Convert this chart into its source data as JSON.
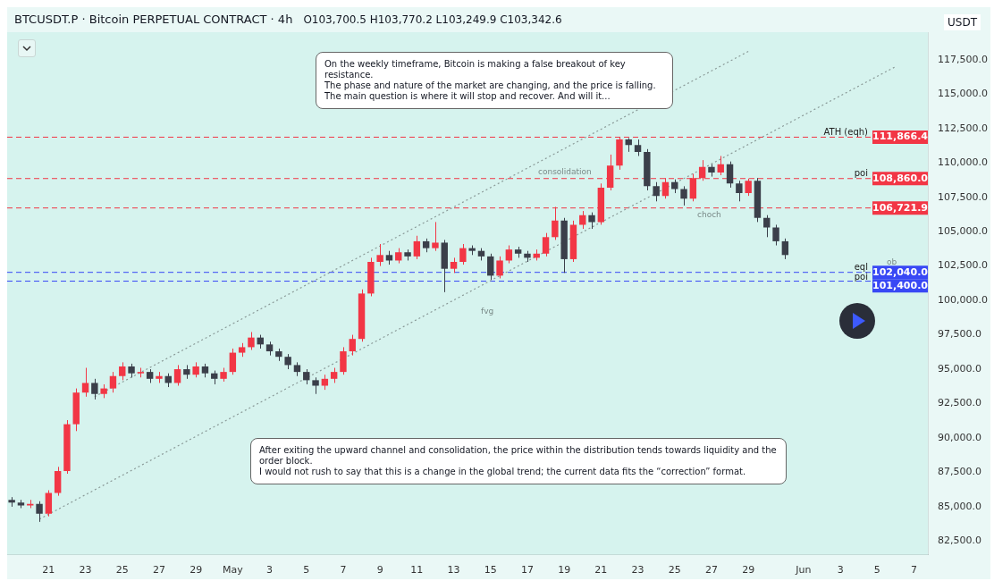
{
  "chart_data": {
    "type": "candlestick",
    "title": "BTCUSDT.P · Bitcoin PERPETUAL CONTRACT · 4h",
    "subtitle": "O103,700.5 H103,770.2 L103,249.9 C103,342.6",
    "ylabel": "USDT",
    "categories": [
      null,
      null,
      null,
      null,
      "21",
      null,
      null,
      null,
      "23",
      null,
      null,
      null,
      "25",
      null,
      null,
      null,
      "27",
      null,
      null,
      null,
      "29",
      null,
      null,
      null,
      "May",
      null,
      null,
      null,
      "3",
      null,
      null,
      null,
      "5",
      null,
      null,
      null,
      "7",
      null,
      null,
      null,
      "9",
      null,
      null,
      null,
      "11",
      null,
      null,
      null,
      "13",
      null,
      null,
      null,
      "15",
      null,
      null,
      null,
      "17",
      null,
      null,
      null,
      "19",
      null,
      null,
      null,
      "21",
      null,
      null,
      null,
      "23",
      null,
      null,
      null,
      "25",
      null,
      null,
      null,
      "27",
      null,
      null,
      null,
      "29",
      null,
      null,
      null,
      null,
      null,
      "Jun",
      null,
      null,
      null,
      "3",
      null,
      null,
      null,
      "5",
      null,
      null,
      null,
      "7",
      null
    ],
    "ohlc": [
      [
        85500,
        85700,
        85000,
        85300
      ],
      [
        85300,
        85500,
        84900,
        85100
      ],
      [
        85100,
        85500,
        84900,
        85200
      ],
      [
        85200,
        85400,
        83900,
        84500
      ],
      [
        84500,
        86200,
        84300,
        86000
      ],
      [
        86000,
        87900,
        85800,
        87600
      ],
      [
        87600,
        91300,
        87400,
        91000
      ],
      [
        91000,
        93600,
        90500,
        93300
      ],
      [
        93300,
        95100,
        93000,
        94000
      ],
      [
        94000,
        94300,
        92800,
        93200
      ],
      [
        93200,
        93900,
        92900,
        93600
      ],
      [
        93600,
        94800,
        93300,
        94500
      ],
      [
        94500,
        95500,
        94200,
        95200
      ],
      [
        95200,
        95400,
        94400,
        94700
      ],
      [
        94700,
        95100,
        94400,
        94800
      ],
      [
        94800,
        95000,
        94000,
        94300
      ],
      [
        94300,
        94800,
        94000,
        94500
      ],
      [
        94500,
        94700,
        93700,
        94000
      ],
      [
        94000,
        95300,
        93800,
        95000
      ],
      [
        95000,
        95300,
        94300,
        94600
      ],
      [
        94600,
        95500,
        94400,
        95200
      ],
      [
        95200,
        95400,
        94400,
        94700
      ],
      [
        94700,
        94900,
        93900,
        94300
      ],
      [
        94300,
        95100,
        94100,
        94800
      ],
      [
        94800,
        96500,
        94600,
        96200
      ],
      [
        96200,
        96900,
        95900,
        96600
      ],
      [
        96600,
        97700,
        96400,
        97300
      ],
      [
        97300,
        97500,
        96500,
        96800
      ],
      [
        96800,
        97000,
        96000,
        96300
      ],
      [
        96300,
        96500,
        95600,
        95900
      ],
      [
        95900,
        96100,
        95000,
        95300
      ],
      [
        95300,
        95500,
        94500,
        94800
      ],
      [
        94800,
        95000,
        93900,
        94200
      ],
      [
        94200,
        94400,
        93200,
        93800
      ],
      [
        93800,
        94600,
        93500,
        94300
      ],
      [
        94300,
        95100,
        94000,
        94800
      ],
      [
        94800,
        96600,
        94600,
        96300
      ],
      [
        96300,
        97500,
        96000,
        97200
      ],
      [
        97200,
        100800,
        97000,
        100500
      ],
      [
        100500,
        103100,
        100300,
        102800
      ],
      [
        102800,
        104100,
        102500,
        103300
      ],
      [
        103300,
        103600,
        102600,
        102900
      ],
      [
        102900,
        103800,
        102700,
        103500
      ],
      [
        103500,
        103700,
        102900,
        103200
      ],
      [
        103200,
        104700,
        103000,
        104300
      ],
      [
        104300,
        104500,
        103500,
        103800
      ],
      [
        103800,
        105700,
        103600,
        104200
      ],
      [
        104200,
        104400,
        100600,
        102300
      ],
      [
        102300,
        103100,
        102000,
        102800
      ],
      [
        102800,
        104100,
        102600,
        103800
      ],
      [
        103800,
        104000,
        103300,
        103600
      ],
      [
        103600,
        103800,
        102900,
        103200
      ],
      [
        103200,
        103400,
        101500,
        101800
      ],
      [
        101800,
        103200,
        101600,
        102900
      ],
      [
        102900,
        104000,
        102700,
        103700
      ],
      [
        103700,
        103900,
        103100,
        103400
      ],
      [
        103400,
        103600,
        102800,
        103100
      ],
      [
        103100,
        103700,
        102900,
        103400
      ],
      [
        103400,
        104900,
        103200,
        104600
      ],
      [
        104600,
        106800,
        104400,
        105800
      ],
      [
        105800,
        106000,
        102000,
        103000
      ],
      [
        103000,
        105800,
        102800,
        105500
      ],
      [
        105500,
        106500,
        105200,
        106200
      ],
      [
        106200,
        106400,
        105200,
        105700
      ],
      [
        105700,
        108500,
        105500,
        108200
      ],
      [
        108200,
        110600,
        108000,
        109800
      ],
      [
        109800,
        111866.4,
        109500,
        111700
      ],
      [
        111700,
        111800,
        110800,
        111300
      ],
      [
        111300,
        111700,
        110500,
        110800
      ],
      [
        110800,
        111000,
        108000,
        108300
      ],
      [
        108300,
        108600,
        107200,
        107600
      ],
      [
        107600,
        108900,
        107400,
        108600
      ],
      [
        108600,
        108800,
        107800,
        108100
      ],
      [
        108100,
        108300,
        106900,
        107400
      ],
      [
        107400,
        109200,
        107200,
        108900
      ],
      [
        108900,
        110200,
        108700,
        109700
      ],
      [
        109700,
        109900,
        109000,
        109300
      ],
      [
        109300,
        110500,
        109100,
        109900
      ],
      [
        109900,
        110100,
        108200,
        108500
      ],
      [
        108500,
        108700,
        107200,
        107800
      ],
      [
        107800,
        108860,
        107600,
        108700
      ],
      [
        108700,
        108900,
        105700,
        106000
      ],
      [
        106000,
        106200,
        104600,
        105300
      ],
      [
        105300,
        105500,
        104000,
        104300
      ],
      [
        104300,
        104500,
        103000,
        103300
      ],
      null,
      null,
      null,
      null,
      null,
      null,
      null,
      null,
      null,
      null,
      null,
      null,
      null,
      null,
      null
    ],
    "colors": [
      "#3b3f4a",
      "#3b3f4a",
      "#f23645",
      "#3b3f4a",
      "#f23645",
      "#f23645",
      "#f23645",
      "#f23645",
      "#f23645",
      "#3b3f4a",
      "#f23645",
      "#f23645",
      "#f23645",
      "#3b3f4a",
      "#f23645",
      "#3b3f4a",
      "#f23645",
      "#3b3f4a",
      "#f23645",
      "#3b3f4a",
      "#f23645",
      "#3b3f4a",
      "#3b3f4a",
      "#f23645",
      "#f23645",
      "#f23645",
      "#f23645",
      "#3b3f4a",
      "#3b3f4a",
      "#3b3f4a",
      "#3b3f4a",
      "#3b3f4a",
      "#3b3f4a",
      "#3b3f4a",
      "#f23645",
      "#f23645",
      "#f23645",
      "#f23645",
      "#f23645",
      "#f23645",
      "#f23645",
      "#3b3f4a",
      "#f23645",
      "#3b3f4a",
      "#f23645",
      "#3b3f4a",
      "#f23645",
      "#3b3f4a",
      "#f23645",
      "#f23645",
      "#3b3f4a",
      "#3b3f4a",
      "#3b3f4a",
      "#f23645",
      "#f23645",
      "#3b3f4a",
      "#3b3f4a",
      "#f23645",
      "#f23645",
      "#f23645",
      "#3b3f4a",
      "#f23645",
      "#f23645",
      "#3b3f4a",
      "#f23645",
      "#f23645",
      "#f23645",
      "#3b3f4a",
      "#3b3f4a",
      "#3b3f4a",
      "#3b3f4a",
      "#f23645",
      "#3b3f4a",
      "#3b3f4a",
      "#f23645",
      "#f23645",
      "#3b3f4a",
      "#f23645",
      "#3b3f4a",
      "#3b3f4a",
      "#f23645",
      "#3b3f4a",
      "#3b3f4a",
      "#3b3f4a",
      "#3b3f4a",
      null,
      null,
      null,
      null,
      null,
      null,
      null,
      null,
      null,
      null,
      null,
      null,
      null,
      null,
      null
    ],
    "series": [
      {
        "type": "line",
        "color": "#8a9a98",
        "line_style": "dotted",
        "values": [
          null,
          null,
          null,
          84100,
          null,
          null,
          null,
          null,
          null,
          null,
          null,
          null,
          null,
          null,
          null,
          null,
          null,
          null,
          null,
          null,
          null,
          null,
          null,
          null,
          null,
          null,
          null,
          null,
          null,
          null,
          null,
          null,
          null,
          null,
          null,
          null,
          null,
          null,
          null,
          null,
          null,
          null,
          null,
          null,
          null,
          null,
          null,
          null,
          null,
          null,
          null,
          null,
          null,
          null,
          null,
          null,
          null,
          null,
          null,
          null,
          null,
          null,
          null,
          null,
          null,
          null,
          null,
          null,
          null,
          null,
          null,
          null,
          null,
          null,
          null,
          null,
          null,
          null,
          null,
          null,
          null,
          null,
          null,
          null,
          null,
          null,
          null,
          null,
          null,
          null,
          null,
          null,
          null,
          null,
          null,
          null,
          117000,
          null,
          null,
          null
        ]
      },
      {
        "type": "line",
        "color": "#8a9a98",
        "line_style": "dotted",
        "values": [
          null,
          null,
          null,
          null,
          null,
          null,
          null,
          null,
          null,
          93000,
          null,
          null,
          null,
          null,
          null,
          null,
          null,
          null,
          null,
          null,
          null,
          null,
          null,
          null,
          null,
          null,
          null,
          null,
          null,
          null,
          null,
          null,
          null,
          null,
          null,
          null,
          null,
          null,
          null,
          null,
          null,
          null,
          null,
          null,
          null,
          null,
          null,
          null,
          null,
          null,
          null,
          null,
          null,
          null,
          null,
          null,
          null,
          null,
          null,
          null,
          null,
          null,
          null,
          null,
          null,
          null,
          null,
          null,
          null,
          null,
          null,
          null,
          null,
          null,
          null,
          null,
          null,
          null,
          null,
          null,
          118100,
          null,
          null,
          null,
          null,
          null,
          null,
          null,
          null,
          null,
          null,
          null,
          null,
          null,
          null,
          null,
          null,
          null,
          null,
          null
        ]
      }
    ],
    "ylim": [
      81500,
      119500
    ],
    "yticks": [
      {
        "value": 82500,
        "label": "82,500.0"
      },
      {
        "value": 85000,
        "label": "85,000.0"
      },
      {
        "value": 87500,
        "label": "87,500.0"
      },
      {
        "value": 90000,
        "label": "90,000.0"
      },
      {
        "value": 92500,
        "label": "92,500.0"
      },
      {
        "value": 95000,
        "label": "95,000.0"
      },
      {
        "value": 97500,
        "label": "97,500.0"
      },
      {
        "value": 100000,
        "label": "100,000.0"
      },
      {
        "value": 102500,
        "label": "102,500.0"
      },
      {
        "value": 105000,
        "label": "105,000.0"
      },
      {
        "value": 107500,
        "label": "107,500.0"
      },
      {
        "value": 110000,
        "label": "110,000.0"
      },
      {
        "value": 112500,
        "label": "112,500.0"
      },
      {
        "value": 115000,
        "label": "115,000.0"
      },
      {
        "value": 117500,
        "label": "117,500.0"
      }
    ],
    "ref_lines": [
      {
        "axis": "y",
        "value": 111866.4,
        "label": "ATH (eqh)",
        "color": "#f23645",
        "line_style": "dashed"
      },
      {
        "axis": "y",
        "value": 108860,
        "label": "poi",
        "color": "#f23645",
        "line_style": "dashed"
      },
      {
        "axis": "y",
        "value": 106721.9,
        "label": null,
        "color": "#f23645",
        "line_style": "dashed"
      },
      {
        "axis": "y",
        "value": 102040,
        "label": "eql",
        "color": "#3848f5",
        "line_style": "dashed"
      },
      {
        "axis": "y",
        "value": 101400,
        "label": "poi",
        "color": "#3848f5",
        "line_style": "dashed"
      }
    ],
    "annotations": [
      {
        "text": "111,866.4",
        "y": 111866.4
      },
      {
        "text": "108,860.0",
        "y": 108860
      },
      {
        "text": "106,721.9",
        "y": 106721.9
      },
      {
        "text": "102,040.0",
        "y": 102040
      },
      {
        "text": "101,400.0",
        "y": 101400
      },
      "On the weekly timeframe, Bitcoin is making a false breakout of key resistance.\nThe phase and nature of the market are changing, and the price is falling.\nThe main question is where it will stop and recover. And will it...",
      "After exiting the upward channel and consolidation, the price within the distribution tends towards liquidity and the order block.\nI would not rush to say that this is a change in the global trend; the current data fits the “correction” format.",
      "consolidation",
      "choch",
      "fvg",
      "ob"
    ],
    "legend": false
  }
}
